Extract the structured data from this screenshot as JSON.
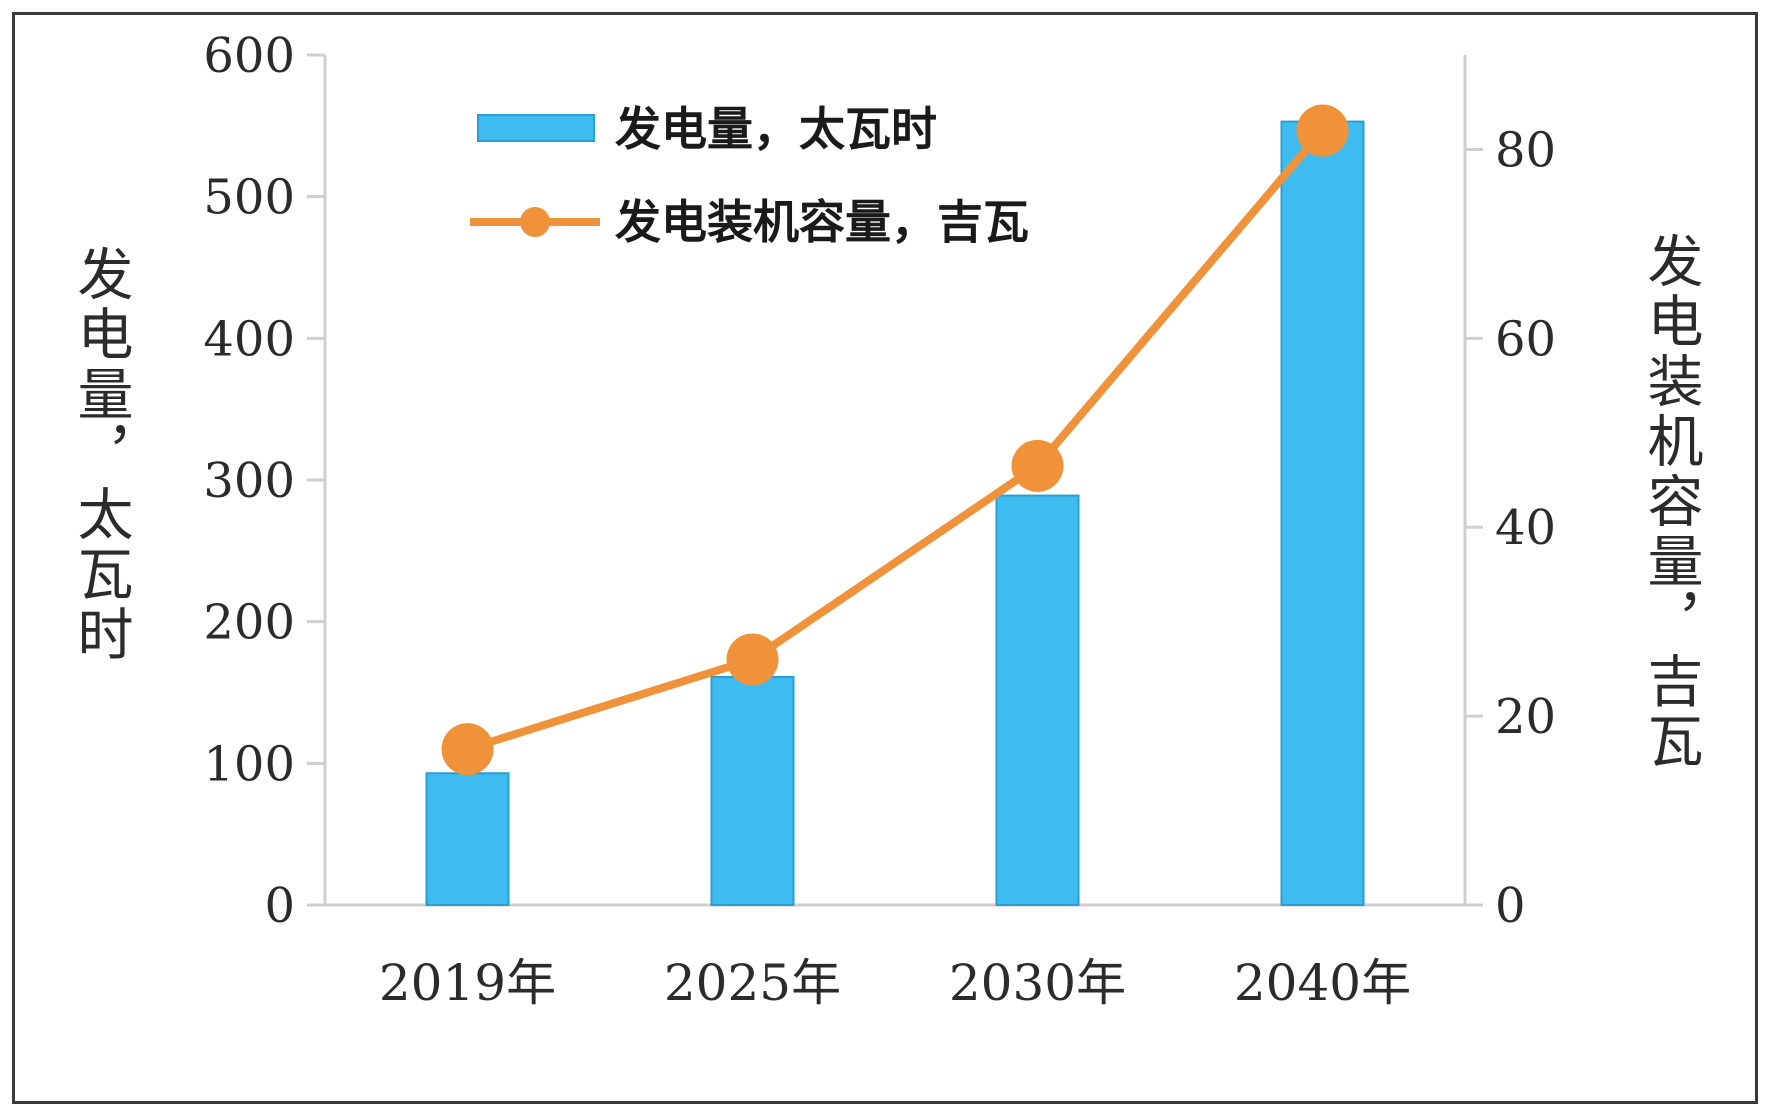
{
  "chart_data": {
    "type": "bar",
    "categories": [
      "2019年",
      "2025年",
      "2030年",
      "2040年"
    ],
    "series": [
      {
        "name": "发电量，太瓦时",
        "type": "bar",
        "axis": "left",
        "values": [
          93,
          161,
          289,
          553
        ]
      },
      {
        "name": "发电装机容量，吉瓦",
        "type": "line",
        "axis": "right",
        "values": [
          16.5,
          26,
          46.5,
          82
        ]
      }
    ],
    "ylabel": "发电量，太瓦时",
    "y2label": "发电装机容量，吉瓦",
    "ylim": [
      0,
      600
    ],
    "y2lim": [
      0,
      90
    ],
    "yticks": [
      0,
      100,
      200,
      300,
      400,
      500,
      600
    ],
    "y2ticks": [
      0,
      20,
      40,
      60,
      80
    ],
    "grid": false,
    "legend": "top-left",
    "colors": {
      "bar": "#3fbcef",
      "bar_edge": "#2a9ed1",
      "line": "#f0923a",
      "axis": "#cfcfcf"
    }
  }
}
